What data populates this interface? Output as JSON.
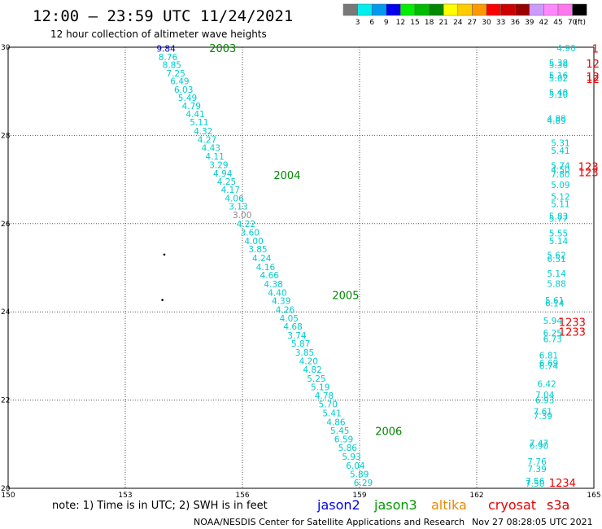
{
  "title": "12:00 – 23:59 UTC 11/24/2021",
  "subtitle": "12 hour collection of altimeter wave heights",
  "footer_credit": "NOAA/NESDIS Center for Satellite Applications and Research",
  "footer_time": "Nov 27 08:28:05 UTC 2021",
  "note": "note: 1) Time is in UTC; 2) SWH is in feet",
  "satellites": [
    {
      "name": "jason2",
      "color": "#0000ee"
    },
    {
      "name": "jason3",
      "color": "#009900"
    },
    {
      "name": "altika",
      "color": "#ee8800"
    },
    {
      "name": "cryosat",
      "color": "#ee0000"
    },
    {
      "name": "s3a",
      "color": "#cc0000"
    }
  ],
  "colorbar": {
    "unit": "(ft)",
    "labels": [
      "3",
      "6",
      "9",
      "12",
      "15",
      "18",
      "21",
      "24",
      "27",
      "30",
      "33",
      "36",
      "39",
      "42",
      "45",
      "70"
    ],
    "colors": [
      "#787878",
      "#00eeee",
      "#0099ee",
      "#0000ee",
      "#00ee00",
      "#00bb00",
      "#008800",
      "#ffff00",
      "#ffcc00",
      "#ff9900",
      "#ff0000",
      "#cc0000",
      "#990000",
      "#cc99ff",
      "#ff88ff",
      "#ff77ee",
      "#000000"
    ]
  },
  "chart_data": {
    "type": "scatter",
    "xlim": [
      150,
      165
    ],
    "ylim": [
      20,
      30
    ],
    "x_ticks": [
      "150",
      "153",
      "156",
      "159",
      "162",
      "165"
    ],
    "y_ticks": [
      "20",
      "22",
      "24",
      "26",
      "28",
      "30"
    ],
    "grid": true,
    "track_labels": [
      {
        "text": "2003",
        "x": 155.15,
        "y": 29.98,
        "color": "#008800"
      },
      {
        "text": "2004",
        "x": 156.8,
        "y": 27.1,
        "color": "#008800"
      },
      {
        "text": "2005",
        "x": 158.3,
        "y": 24.38,
        "color": "#008800"
      },
      {
        "text": "2006",
        "x": 159.4,
        "y": 21.3,
        "color": "#008800"
      }
    ],
    "track_points": [
      {
        "v": "9.84",
        "x": 153.8,
        "y": 29.97,
        "c": "#0000cc"
      },
      {
        "v": "8.76",
        "x": 153.85,
        "y": 29.78,
        "c": "#00cccc"
      },
      {
        "v": "8.85",
        "x": 153.95,
        "y": 29.6,
        "c": "#00cccc"
      },
      {
        "v": "7.25",
        "x": 154.05,
        "y": 29.41,
        "c": "#00cccc"
      },
      {
        "v": "6.49",
        "x": 154.15,
        "y": 29.23,
        "c": "#00cccc"
      },
      {
        "v": "6.03",
        "x": 154.25,
        "y": 29.04,
        "c": "#00cccc"
      },
      {
        "v": "5.49",
        "x": 154.35,
        "y": 28.86,
        "c": "#00cccc"
      },
      {
        "v": "4.79",
        "x": 154.45,
        "y": 28.67,
        "c": "#00cccc"
      },
      {
        "v": "4.41",
        "x": 154.55,
        "y": 28.49,
        "c": "#00cccc"
      },
      {
        "v": "5.11",
        "x": 154.65,
        "y": 28.3,
        "c": "#00cccc"
      },
      {
        "v": "4.32",
        "x": 154.75,
        "y": 28.1,
        "c": "#00cccc"
      },
      {
        "v": "4.27",
        "x": 154.85,
        "y": 27.91,
        "c": "#00cccc"
      },
      {
        "v": "4.43",
        "x": 154.95,
        "y": 27.72,
        "c": "#00cccc"
      },
      {
        "v": "4.11",
        "x": 155.05,
        "y": 27.53,
        "c": "#00cccc"
      },
      {
        "v": "3.29",
        "x": 155.15,
        "y": 27.33,
        "c": "#00cccc"
      },
      {
        "v": "4.94",
        "x": 155.25,
        "y": 27.14,
        "c": "#00cccc"
      },
      {
        "v": "4.25",
        "x": 155.35,
        "y": 26.96,
        "c": "#00cccc"
      },
      {
        "v": "4.17",
        "x": 155.45,
        "y": 26.77,
        "c": "#00cccc"
      },
      {
        "v": "4.06",
        "x": 155.55,
        "y": 26.58,
        "c": "#00cccc"
      },
      {
        "v": "3.13",
        "x": 155.65,
        "y": 26.39,
        "c": "#00cccc"
      },
      {
        "v": "3.00",
        "x": 155.75,
        "y": 26.2,
        "c": "#888888"
      },
      {
        "v": "4.22",
        "x": 155.85,
        "y": 26.0,
        "c": "#00cccc"
      },
      {
        "v": "3.60",
        "x": 155.95,
        "y": 25.8,
        "c": "#00cccc"
      },
      {
        "v": "4.00",
        "x": 156.05,
        "y": 25.61,
        "c": "#00cccc"
      },
      {
        "v": "3.85",
        "x": 156.15,
        "y": 25.42,
        "c": "#00cccc"
      },
      {
        "v": "4.24",
        "x": 156.25,
        "y": 25.22,
        "c": "#00cccc"
      },
      {
        "v": "4.16",
        "x": 156.35,
        "y": 25.02,
        "c": "#00cccc"
      },
      {
        "v": "4.66",
        "x": 156.45,
        "y": 24.83,
        "c": "#00cccc"
      },
      {
        "v": "4.38",
        "x": 156.55,
        "y": 24.63,
        "c": "#00cccc"
      },
      {
        "v": "4.40",
        "x": 156.65,
        "y": 24.44,
        "c": "#00cccc"
      },
      {
        "v": "4.39",
        "x": 156.75,
        "y": 24.25,
        "c": "#00cccc"
      },
      {
        "v": "4.26",
        "x": 156.85,
        "y": 24.05,
        "c": "#00cccc"
      },
      {
        "v": "4.05",
        "x": 156.95,
        "y": 23.86,
        "c": "#00cccc"
      },
      {
        "v": "4.68",
        "x": 157.05,
        "y": 23.67,
        "c": "#00cccc"
      },
      {
        "v": "3.74",
        "x": 157.15,
        "y": 23.47,
        "c": "#00cccc"
      },
      {
        "v": "5.87",
        "x": 157.25,
        "y": 23.28,
        "c": "#00cccc"
      },
      {
        "v": "3.85",
        "x": 157.35,
        "y": 23.08,
        "c": "#00cccc"
      },
      {
        "v": "4.20",
        "x": 157.45,
        "y": 22.89,
        "c": "#00cccc"
      },
      {
        "v": "4.82",
        "x": 157.55,
        "y": 22.69,
        "c": "#00cccc"
      },
      {
        "v": "5.25",
        "x": 157.65,
        "y": 22.49,
        "c": "#00cccc"
      },
      {
        "v": "5.19",
        "x": 157.75,
        "y": 22.3,
        "c": "#00cccc"
      },
      {
        "v": "4.78",
        "x": 157.85,
        "y": 22.1,
        "c": "#00cccc"
      },
      {
        "v": "5.70",
        "x": 157.95,
        "y": 21.91,
        "c": "#00cccc"
      },
      {
        "v": "5.41",
        "x": 158.05,
        "y": 21.71,
        "c": "#00cccc"
      },
      {
        "v": "4.86",
        "x": 158.15,
        "y": 21.5,
        "c": "#00cccc"
      },
      {
        "v": "5.45",
        "x": 158.25,
        "y": 21.31,
        "c": "#00cccc"
      },
      {
        "v": "6.59",
        "x": 158.35,
        "y": 21.12,
        "c": "#00cccc"
      },
      {
        "v": "5.86",
        "x": 158.45,
        "y": 20.92,
        "c": "#00cccc"
      },
      {
        "v": "5.93",
        "x": 158.55,
        "y": 20.72,
        "c": "#00cccc"
      },
      {
        "v": "6.04",
        "x": 158.65,
        "y": 20.52,
        "c": "#00cccc"
      },
      {
        "v": "5.89",
        "x": 158.75,
        "y": 20.32,
        "c": "#00cccc"
      },
      {
        "v": "6.29",
        "x": 158.85,
        "y": 20.13,
        "c": "#00cccc"
      }
    ],
    "east_points": [
      {
        "v": "4.90",
        "x": 164.05,
        "y": 29.98,
        "c": "#00cccc"
      },
      {
        "v": "5.38",
        "x": 163.85,
        "y": 29.65,
        "c": "#00cccc"
      },
      {
        "v": "5.36",
        "x": 163.85,
        "y": 29.6,
        "c": "#00cccc"
      },
      {
        "v": "5.16",
        "x": 163.85,
        "y": 29.36,
        "c": "#00cccc"
      },
      {
        "v": "5.02",
        "x": 163.85,
        "y": 29.3,
        "c": "#00cccc"
      },
      {
        "v": "5.40",
        "x": 163.85,
        "y": 28.98,
        "c": "#00cccc"
      },
      {
        "v": "5.10",
        "x": 163.85,
        "y": 28.93,
        "c": "#00cccc"
      },
      {
        "v": "4.88",
        "x": 163.8,
        "y": 28.39,
        "c": "#00cccc"
      },
      {
        "v": "4.89",
        "x": 163.8,
        "y": 28.34,
        "c": "#00cccc"
      },
      {
        "v": "5.31",
        "x": 163.9,
        "y": 27.83,
        "c": "#00cccc"
      },
      {
        "v": "5.41",
        "x": 163.9,
        "y": 27.66,
        "c": "#00cccc"
      },
      {
        "v": "5.74",
        "x": 163.9,
        "y": 27.32,
        "c": "#00cccc"
      },
      {
        "v": "4.50",
        "x": 163.9,
        "y": 27.22,
        "c": "#00cccc"
      },
      {
        "v": "7.80",
        "x": 163.9,
        "y": 27.12,
        "c": "#00cccc"
      },
      {
        "v": "5.09",
        "x": 163.9,
        "y": 26.88,
        "c": "#00cccc"
      },
      {
        "v": "5.12",
        "x": 163.9,
        "y": 26.61,
        "c": "#00cccc"
      },
      {
        "v": "5.11",
        "x": 163.9,
        "y": 26.45,
        "c": "#00cccc"
      },
      {
        "v": "5.83",
        "x": 163.85,
        "y": 26.17,
        "c": "#00cccc"
      },
      {
        "v": "5.77",
        "x": 163.85,
        "y": 26.12,
        "c": "#00cccc"
      },
      {
        "v": "5.55",
        "x": 163.85,
        "y": 25.78,
        "c": "#00cccc"
      },
      {
        "v": "5.14",
        "x": 163.85,
        "y": 25.61,
        "c": "#00cccc"
      },
      {
        "v": "5.62",
        "x": 163.8,
        "y": 25.29,
        "c": "#00cccc"
      },
      {
        "v": "6.51",
        "x": 163.8,
        "y": 25.2,
        "c": "#00cccc"
      },
      {
        "v": "5.14",
        "x": 163.8,
        "y": 24.87,
        "c": "#00cccc"
      },
      {
        "v": "5.88",
        "x": 163.8,
        "y": 24.64,
        "c": "#00cccc"
      },
      {
        "v": "5.61",
        "x": 163.75,
        "y": 24.26,
        "c": "#00cccc"
      },
      {
        "v": "6.14",
        "x": 163.75,
        "y": 24.2,
        "c": "#00cccc"
      },
      {
        "v": "5.94",
        "x": 163.7,
        "y": 23.8,
        "c": "#00cccc"
      },
      {
        "v": "6.25",
        "x": 163.7,
        "y": 23.52,
        "c": "#00cccc"
      },
      {
        "v": "6.73",
        "x": 163.7,
        "y": 23.39,
        "c": "#00cccc"
      },
      {
        "v": "6.81",
        "x": 163.6,
        "y": 23.02,
        "c": "#00cccc"
      },
      {
        "v": "6.69",
        "x": 163.6,
        "y": 22.84,
        "c": "#00cccc"
      },
      {
        "v": "6.74",
        "x": 163.6,
        "y": 22.78,
        "c": "#00cccc"
      },
      {
        "v": "6.42",
        "x": 163.55,
        "y": 22.37,
        "c": "#00cccc"
      },
      {
        "v": "7.04",
        "x": 163.5,
        "y": 22.12,
        "c": "#00cccc"
      },
      {
        "v": "6.93",
        "x": 163.5,
        "y": 22.0,
        "c": "#00cccc"
      },
      {
        "v": "7.61",
        "x": 163.45,
        "y": 21.74,
        "c": "#00cccc"
      },
      {
        "v": "7.39",
        "x": 163.45,
        "y": 21.64,
        "c": "#00cccc"
      },
      {
        "v": "7.47",
        "x": 163.35,
        "y": 21.02,
        "c": "#00cccc"
      },
      {
        "v": "6.90",
        "x": 163.35,
        "y": 20.97,
        "c": "#00cccc"
      },
      {
        "v": "7.76",
        "x": 163.3,
        "y": 20.61,
        "c": "#00cccc"
      },
      {
        "v": "7.39",
        "x": 163.3,
        "y": 20.44,
        "c": "#00cccc"
      },
      {
        "v": "7.56",
        "x": 163.25,
        "y": 20.17,
        "c": "#00cccc"
      },
      {
        "v": "7.50",
        "x": 163.25,
        "y": 20.11,
        "c": "#00cccc"
      }
    ],
    "red_labels": [
      {
        "text": "1",
        "x": 164.95,
        "y": 29.97
      },
      {
        "text": "12",
        "x": 164.8,
        "y": 29.63
      },
      {
        "text": "12",
        "x": 164.8,
        "y": 29.34
      },
      {
        "text": "12",
        "x": 164.8,
        "y": 29.28
      },
      {
        "text": "123",
        "x": 164.6,
        "y": 27.3
      },
      {
        "text": "123",
        "x": 164.6,
        "y": 27.17
      },
      {
        "text": "1233",
        "x": 164.1,
        "y": 23.77
      },
      {
        "text": "1233",
        "x": 164.1,
        "y": 23.55
      },
      {
        "text": "1234",
        "x": 163.85,
        "y": 20.13
      }
    ],
    "dots": [
      {
        "x": 154.0,
        "y": 25.3
      },
      {
        "x": 153.95,
        "y": 24.27
      }
    ]
  }
}
